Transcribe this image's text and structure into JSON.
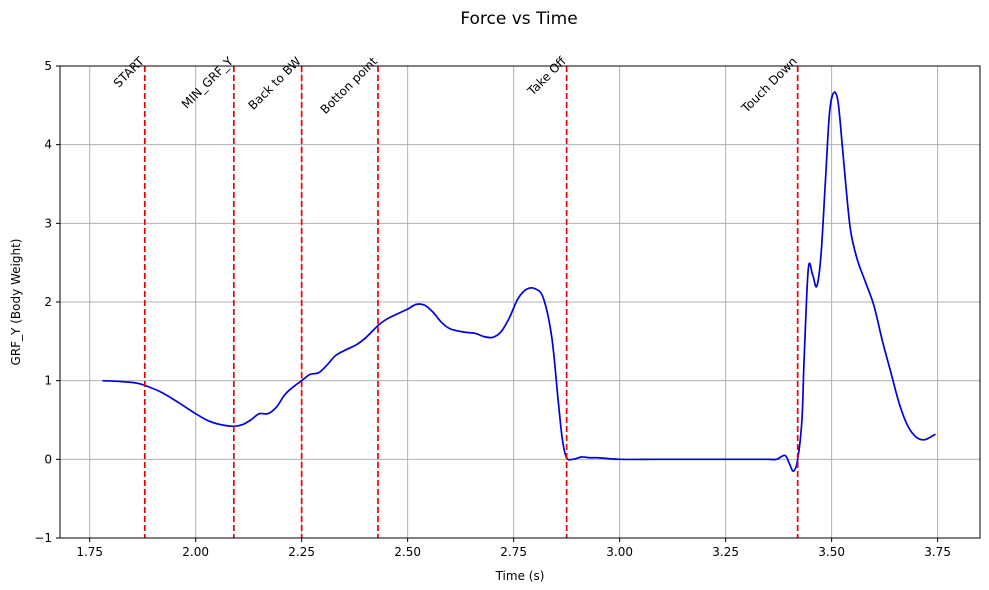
{
  "chart_data": {
    "type": "line",
    "title": "Force vs Time",
    "xlabel": "Time (s)",
    "ylabel": "GRF_Y (Body Weight)",
    "xlim": [
      1.68,
      3.85
    ],
    "ylim": [
      -1,
      5
    ],
    "xticks": [
      1.75,
      2.0,
      2.25,
      2.5,
      2.75,
      3.0,
      3.25,
      3.5,
      3.75
    ],
    "xtick_labels": [
      "1.75",
      "2.00",
      "2.25",
      "2.50",
      "2.75",
      "3.00",
      "3.25",
      "3.50",
      "3.75"
    ],
    "yticks": [
      -1,
      0,
      1,
      2,
      3,
      4,
      5
    ],
    "ytick_labels": [
      "−1",
      "0",
      "1",
      "2",
      "3",
      "4",
      "5"
    ],
    "grid": true,
    "colors": {
      "line": "#0000dd",
      "event": "#ee0000",
      "grid": "#b0b0b0"
    },
    "series": [
      {
        "x": [
          1.78,
          1.82,
          1.86,
          1.88,
          1.92,
          1.96,
          2.0,
          2.03,
          2.06,
          2.09,
          2.11,
          2.13,
          2.15,
          2.17,
          2.19,
          2.21,
          2.23,
          2.25,
          2.27,
          2.29,
          2.31,
          2.33,
          2.35,
          2.38,
          2.4,
          2.43,
          2.45,
          2.48,
          2.5,
          2.52,
          2.54,
          2.56,
          2.58,
          2.6,
          2.63,
          2.66,
          2.68,
          2.7,
          2.72,
          2.74,
          2.76,
          2.78,
          2.8,
          2.82,
          2.84,
          2.855,
          2.865,
          2.875,
          2.89,
          2.91,
          2.93,
          2.95,
          3.0,
          3.1,
          3.2,
          3.3,
          3.35,
          3.37,
          3.39,
          3.4,
          3.41,
          3.42,
          3.43,
          3.435,
          3.445,
          3.455,
          3.465,
          3.475,
          3.485,
          3.495,
          3.505,
          3.515,
          3.525,
          3.535,
          3.545,
          3.56,
          3.58,
          3.6,
          3.62,
          3.64,
          3.66,
          3.68,
          3.7,
          3.72,
          3.745
        ],
        "y": [
          1.0,
          0.99,
          0.97,
          0.94,
          0.85,
          0.72,
          0.58,
          0.49,
          0.44,
          0.42,
          0.44,
          0.5,
          0.58,
          0.58,
          0.66,
          0.82,
          0.92,
          1.0,
          1.08,
          1.1,
          1.2,
          1.32,
          1.38,
          1.46,
          1.54,
          1.7,
          1.78,
          1.86,
          1.91,
          1.97,
          1.96,
          1.87,
          1.74,
          1.66,
          1.62,
          1.6,
          1.56,
          1.55,
          1.62,
          1.8,
          2.04,
          2.16,
          2.17,
          2.05,
          1.55,
          0.75,
          0.25,
          0.02,
          0.0,
          0.03,
          0.02,
          0.02,
          0.0,
          0.0,
          0.0,
          0.0,
          0.0,
          0.0,
          0.05,
          -0.05,
          -0.15,
          0.0,
          0.5,
          1.25,
          2.42,
          2.35,
          2.2,
          2.6,
          3.5,
          4.4,
          4.66,
          4.55,
          4.0,
          3.4,
          2.9,
          2.55,
          2.25,
          1.95,
          1.5,
          1.1,
          0.7,
          0.42,
          0.28,
          0.25,
          0.32
        ]
      }
    ],
    "events": [
      {
        "label": "START",
        "x": 1.88
      },
      {
        "label": "MIN_GRF_Y",
        "x": 2.09
      },
      {
        "label": "Back to BW",
        "x": 2.25
      },
      {
        "label": "Botton point",
        "x": 2.43
      },
      {
        "label": "Take Off",
        "x": 2.875
      },
      {
        "label": "Touch Down",
        "x": 3.42
      }
    ]
  }
}
